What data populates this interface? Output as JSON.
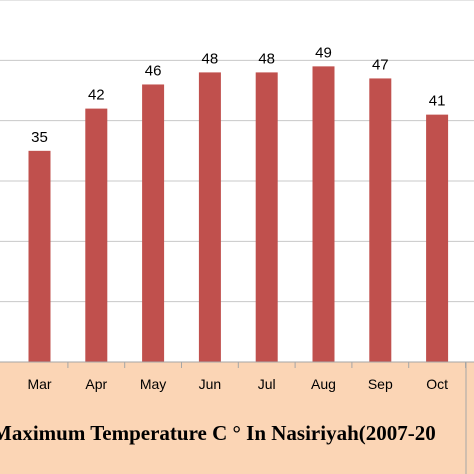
{
  "chart_data": {
    "type": "bar",
    "title": "Maximum Temperature C ° In Nasiriyah(2007-20",
    "categories": [
      "Mar",
      "Apr",
      "May",
      "Jun",
      "Jul",
      "Aug",
      "Sep",
      "Oct"
    ],
    "values": [
      35,
      42,
      46,
      48,
      48,
      49,
      47,
      41
    ],
    "data_labels": [
      "35",
      "42",
      "46",
      "48",
      "48",
      "49",
      "47",
      "41"
    ],
    "ylim": [
      0,
      60
    ],
    "grid": true,
    "bar_color": "#c0504d",
    "axis_band_color": "#fbd5b5"
  }
}
